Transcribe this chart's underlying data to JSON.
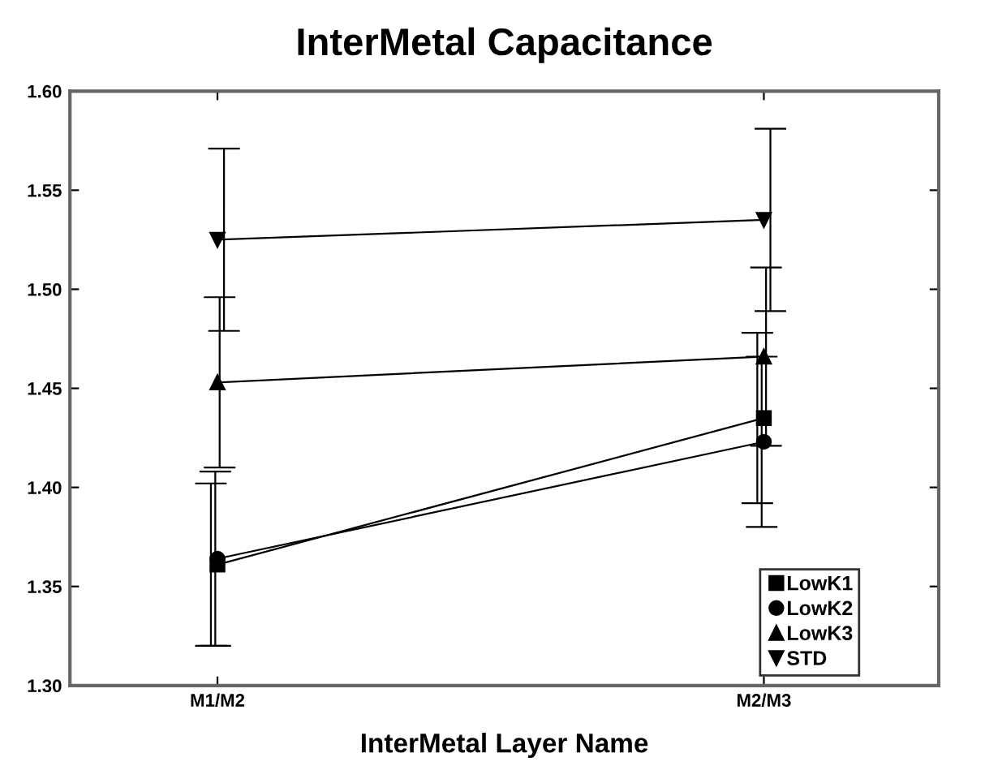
{
  "chart_data": {
    "type": "line",
    "title": "InterMetal Capacitance",
    "xlabel": "InterMetal Layer Name",
    "categories": [
      "M1/M2",
      "M2/M3"
    ],
    "series": [
      {
        "name": "LowK1",
        "color": "#000000",
        "marker": "square",
        "values": [
          1.361,
          1.435
        ],
        "errors": [
          0.041,
          0.043
        ]
      },
      {
        "name": "LowK2",
        "color": "#000000",
        "marker": "circle",
        "values": [
          1.364,
          1.423
        ],
        "errors": [
          0.044,
          0.043
        ]
      },
      {
        "name": "LowK3",
        "color": "#000000",
        "marker": "triangle",
        "values": [
          1.453,
          1.466
        ],
        "errors": [
          0.043,
          0.045
        ]
      },
      {
        "name": "STD",
        "color": "#000000",
        "marker": "triangle_down",
        "values": [
          1.525,
          1.535
        ],
        "errors": [
          0.046,
          0.046
        ]
      }
    ],
    "ylim": [
      1.3,
      1.6
    ],
    "yticks": [
      {
        "value": 1.3,
        "label": "1.30"
      },
      {
        "value": 1.35,
        "label": "1.35"
      },
      {
        "value": 1.4,
        "label": "1.40"
      },
      {
        "value": 1.45,
        "label": "1.45"
      },
      {
        "value": 1.5,
        "label": "1.50"
      },
      {
        "value": 1.55,
        "label": "1.55"
      },
      {
        "value": 1.6,
        "label": "1.60"
      }
    ],
    "grid": false,
    "legend": "bottom right",
    "line_style": "solid"
  }
}
